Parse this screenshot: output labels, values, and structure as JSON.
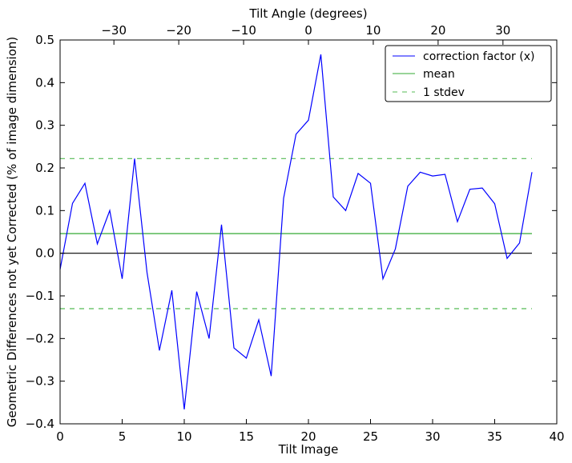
{
  "chart_data": {
    "type": "line",
    "xlabel": "Tilt Image",
    "ylabel": "Geometric Differences not yet Corrected (% of image dimension)",
    "top_xlabel": "Tilt Angle (degrees)",
    "xlim": [
      0,
      40
    ],
    "ylim": [
      -0.4,
      0.5
    ],
    "top_xlim": [
      -38.3,
      38.3
    ],
    "x_ticks": [
      0,
      5,
      10,
      15,
      20,
      25,
      30,
      35,
      40
    ],
    "y_ticks": [
      -0.4,
      -0.3,
      -0.2,
      -0.1,
      0.0,
      0.1,
      0.2,
      0.3,
      0.4,
      0.5
    ],
    "top_x_ticks": [
      -30,
      -20,
      -10,
      0,
      10,
      20,
      30
    ],
    "grid": false,
    "legend_position": "top-right",
    "series": [
      {
        "name": "correction factor (x)",
        "color": "#0000ff",
        "style": "solid",
        "x": [
          0,
          1,
          2,
          3,
          4,
          5,
          6,
          7,
          8,
          9,
          10,
          11,
          12,
          13,
          14,
          15,
          16,
          17,
          18,
          19,
          20,
          21,
          22,
          23,
          24,
          25,
          26,
          27,
          28,
          29,
          30,
          31,
          32,
          33,
          34,
          35,
          36,
          37,
          38
        ],
        "values": [
          -0.038,
          0.117,
          0.164,
          0.022,
          0.1,
          -0.06,
          0.222,
          -0.045,
          -0.228,
          -0.087,
          -0.366,
          -0.09,
          -0.2,
          0.067,
          -0.222,
          -0.246,
          -0.156,
          -0.288,
          0.129,
          0.279,
          0.312,
          0.466,
          0.132,
          0.1,
          0.187,
          0.164,
          -0.06,
          0.01,
          0.157,
          0.19,
          0.181,
          0.185,
          0.074,
          0.15,
          0.153,
          0.116,
          -0.012,
          0.024,
          0.19
        ]
      },
      {
        "name": "mean",
        "color": "#33aa33",
        "style": "solid",
        "x": [
          0,
          38
        ],
        "values": [
          0.046,
          0.046
        ]
      },
      {
        "name": "1 stdev",
        "color": "#55bb55",
        "style": "dashed",
        "x": [
          0,
          38
        ],
        "values": [
          0.222,
          0.222
        ]
      },
      {
        "name": "",
        "color": "#55bb55",
        "style": "dashed",
        "x": [
          0,
          38
        ],
        "values": [
          -0.13,
          -0.13
        ]
      },
      {
        "name": "",
        "color": "#000000",
        "style": "solid",
        "x": [
          0,
          38
        ],
        "values": [
          0,
          0
        ]
      }
    ]
  }
}
